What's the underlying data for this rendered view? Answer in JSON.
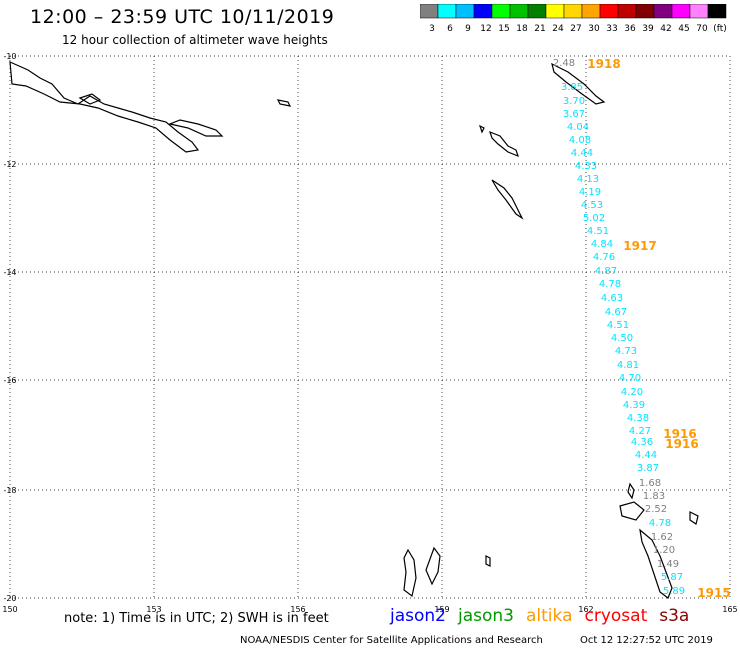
{
  "header": {
    "title": "12:00 – 23:59 UTC 10/11/2019",
    "subtitle": "12 hour collection of altimeter wave heights"
  },
  "colorbar": {
    "colors": [
      "#808080",
      "#00ffff",
      "#00bfff",
      "#0000ff",
      "#00ff00",
      "#00c000",
      "#008000",
      "#ffff00",
      "#ffd700",
      "#ffa500",
      "#ff0000",
      "#c00000",
      "#800000",
      "#800080",
      "#ff00ff",
      "#ff80ff",
      "#000000"
    ],
    "labels": [
      "3",
      "6",
      "9",
      "12",
      "15",
      "18",
      "21",
      "24",
      "27",
      "30",
      "33",
      "36",
      "39",
      "42",
      "45",
      "70",
      "(ft)"
    ]
  },
  "axes": {
    "lat_labels": [
      "-10",
      "-12",
      "-14",
      "-16",
      "-18",
      "-20"
    ],
    "lon_labels": [
      "150",
      "153",
      "156",
      "159",
      "162",
      "165"
    ]
  },
  "track": {
    "color_cyan": "#00e5ff",
    "color_gray": "#808080",
    "values": [
      "2.48",
      "3.85",
      "3.70",
      "3.67",
      "4.04",
      "4.08",
      "4.44",
      "4.33",
      "4.13",
      "4.19",
      "4.53",
      "5.02",
      "4.51",
      "4.84",
      "4.76",
      "4.87",
      "4.78",
      "4.63",
      "4.67",
      "4.51",
      "4.50",
      "4.73",
      "4.81",
      "4.70",
      "4.20",
      "4.39",
      "4.38",
      "4.27",
      "4.36",
      "4.44",
      "3.87",
      "1.68",
      "1.83",
      "2.52",
      "4.78",
      "1.62",
      "1.20",
      "1.49",
      "5.87",
      "5.89"
    ],
    "hours": [
      "1918",
      "1917",
      "1916",
      "1916",
      "1915"
    ],
    "hour_color": "#ff9900"
  },
  "footer": {
    "note": "note: 1) Time is in UTC; 2) SWH is in feet",
    "satellites": [
      {
        "name": "jason2",
        "color": "#0000ff"
      },
      {
        "name": "jason3",
        "color": "#009900"
      },
      {
        "name": "altika",
        "color": "#ff9900"
      },
      {
        "name": "cryosat",
        "color": "#ff0000"
      },
      {
        "name": "s3a",
        "color": "#8b0000"
      }
    ],
    "credit": "NOAA/NESDIS Center for Satellite Applications and Research",
    "timestamp": "Oct 12 12:27:52 UTC 2019"
  }
}
